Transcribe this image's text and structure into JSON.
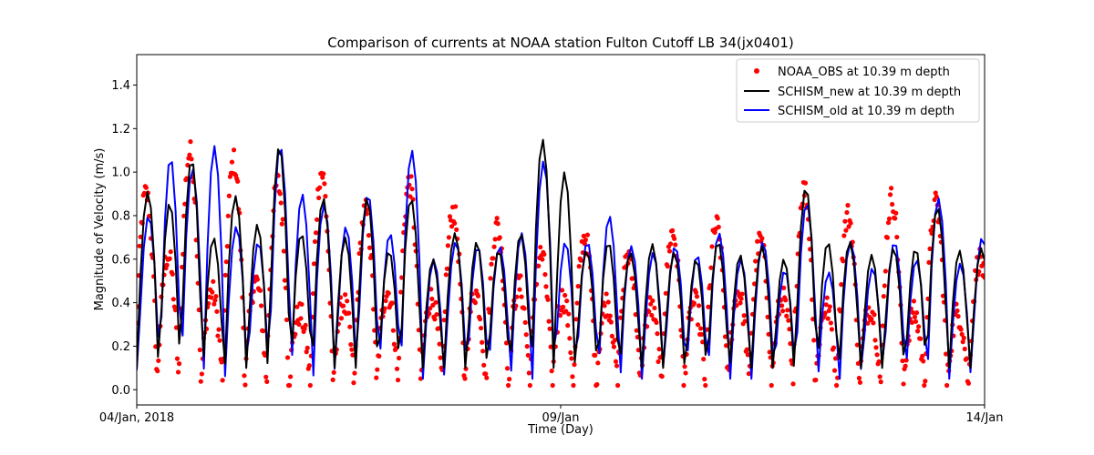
{
  "chart_data": {
    "type": "line",
    "title": "Comparison of currents at NOAA station Fulton Cutoff LB 34(jx0401)",
    "xlabel": "Time (Day)",
    "ylabel": "Magnitude of Velocity (m/s)",
    "xlim": [
      0,
      10
    ],
    "ylim": [
      -0.07,
      1.54
    ],
    "x_ticks": [
      {
        "value": 0,
        "label": "04/Jan, 2018"
      },
      {
        "value": 5,
        "label": "09/Jan"
      },
      {
        "value": 10,
        "label": "14/Jan"
      }
    ],
    "y_ticks": [
      {
        "value": 0.0,
        "label": "0.0"
      },
      {
        "value": 0.2,
        "label": "0.2"
      },
      {
        "value": 0.4,
        "label": "0.4"
      },
      {
        "value": 0.6,
        "label": "0.6"
      },
      {
        "value": 0.8,
        "label": "0.8"
      },
      {
        "value": 1.0,
        "label": "1.0"
      },
      {
        "value": 1.2,
        "label": "1.2"
      },
      {
        "value": 1.4,
        "label": "1.4"
      }
    ],
    "legend_position": "top-right",
    "tidal_period_days": 0.5175,
    "series": [
      {
        "name": "NOAA_OBS at 10.39 m depth",
        "style": "scatter",
        "color": "#ff0000",
        "flood_peaks": [
          0.9,
          1.09,
          1.05,
          0.95,
          1.0,
          0.82,
          0.95,
          0.82,
          0.75,
          0.62,
          0.7,
          0.62,
          0.72,
          0.75,
          0.68,
          0.92,
          0.8,
          0.88,
          0.85,
          0.6,
          0.82,
          0.65,
          0.85,
          0.8,
          0.62,
          0.72,
          0.82,
          0.68,
          0.95,
          0.7,
          0.72,
          0.65,
          0.82,
          0.7,
          0.65,
          0.67,
          0.7,
          0.64,
          0.65,
          0.62
        ],
        "ebb_peaks": [
          0.62,
          0.45,
          0.5,
          0.35,
          0.4,
          0.45,
          0.42,
          0.45,
          0.48,
          0.42,
          0.4,
          0.38,
          0.4,
          0.45,
          0.42,
          0.38,
          0.38,
          0.35,
          0.35,
          0.38,
          0.35,
          0.42,
          0.38,
          0.35,
          0.38,
          0.4,
          0.38,
          0.35,
          0.4,
          0.35,
          0.5,
          0.38,
          0.38,
          0.42,
          0.35,
          0.4,
          0.35,
          0.38,
          0.42,
          0.35
        ],
        "slack_minimum": 0.02
      },
      {
        "name": "SCHISM_new at 10.39 m depth",
        "style": "line",
        "color": "#000000",
        "flood_peaks": [
          0.91,
          1.06,
          0.89,
          1.12,
          0.88,
          0.88,
          0.88,
          0.72,
          0.64,
          1.15,
          0.64,
          0.63,
          0.63,
          0.68,
          0.66,
          0.93,
          0.68,
          0.65,
          0.84,
          0.65,
          0.63,
          0.7,
          0.78,
          0.62
        ],
        "ebb_peaks": [
          0.86,
          0.7,
          0.76,
          0.72,
          0.7,
          0.64,
          0.6,
          0.68,
          0.72,
          1.0,
          0.68,
          0.67,
          0.6,
          0.62,
          0.6,
          0.68,
          0.62,
          0.65,
          0.64,
          0.66,
          0.7,
          0.69,
          0.75,
          0.88
        ],
        "slack_minimum": 0.1
      },
      {
        "name": "SCHISM_old at 10.39 m depth",
        "style": "line",
        "color": "#0000ff",
        "flood_peaks": [
          0.8,
          1.02,
          0.75,
          1.12,
          0.85,
          0.9,
          1.1,
          0.68,
          0.66,
          1.05,
          0.68,
          0.66,
          0.66,
          0.72,
          0.68,
          0.86,
          0.68,
          0.68,
          0.88,
          0.7,
          0.66,
          0.72,
          0.93,
          0.64
        ],
        "ebb_peaks": [
          1.07,
          1.12,
          0.68,
          0.9,
          0.75,
          0.72,
          0.6,
          0.66,
          0.72,
          0.68,
          0.8,
          0.63,
          0.62,
          0.6,
          0.55,
          0.54,
          0.56,
          0.6,
          0.58,
          0.62,
          0.6,
          0.58,
          0.7,
          0.6
        ],
        "slack_minimum": 0.05
      }
    ]
  }
}
